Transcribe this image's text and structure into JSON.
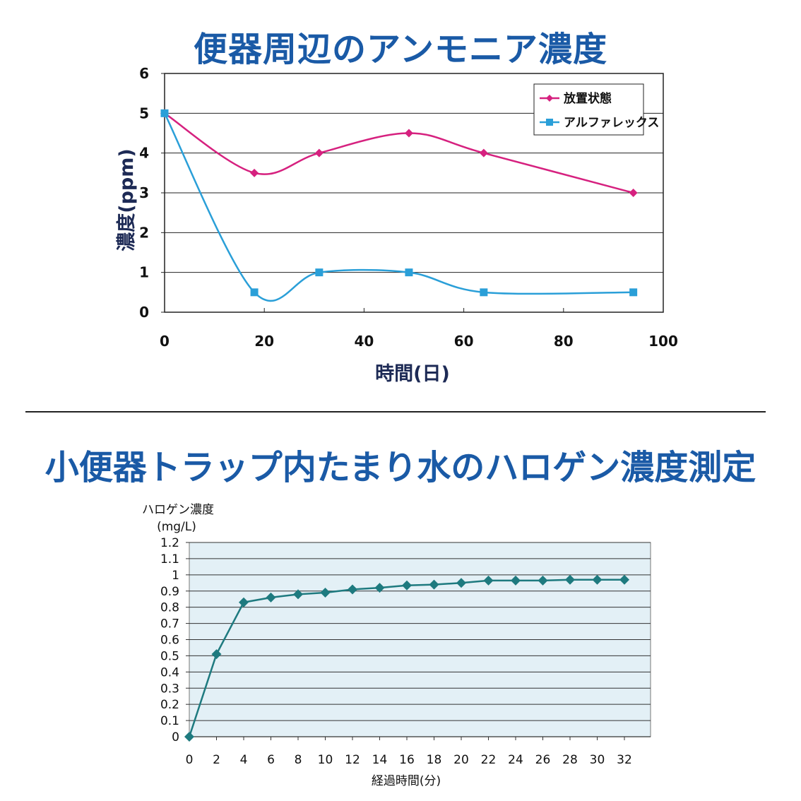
{
  "titles": {
    "top": "便器周辺のアンモニア濃度",
    "bottom": "小便器トラップ内たまり水のハロゲン濃度測定"
  },
  "chart_data": [
    {
      "type": "line",
      "title": "便器周辺のアンモニア濃度",
      "xlabel": "時間(日)",
      "ylabel": "濃度(ppm)",
      "xlim": [
        0,
        100
      ],
      "ylim": [
        0,
        6
      ],
      "xticks": [
        0,
        20,
        40,
        60,
        80,
        100
      ],
      "yticks": [
        0,
        1,
        2,
        3,
        4,
        5,
        6
      ],
      "grid": "horizontal",
      "legend": "top-right",
      "series": [
        {
          "name": "放置状態",
          "color": "#d6217f",
          "marker": "diamond",
          "x": [
            0,
            18,
            31,
            49,
            64,
            94
          ],
          "y": [
            5,
            3.5,
            4,
            4.5,
            4,
            3
          ]
        },
        {
          "name": "アルファレックス",
          "color": "#2a9fd8",
          "marker": "square",
          "x": [
            0,
            18,
            31,
            49,
            64,
            94
          ],
          "y": [
            5,
            0.5,
            1,
            1,
            0.5,
            0.5
          ]
        }
      ]
    },
    {
      "type": "line",
      "title": "小便器トラップ内たまり水のハロゲン濃度測定",
      "xlabel": "経過時間(分)",
      "ylabel_line1": "ハロゲン濃度",
      "ylabel_line2": "(mg/L)",
      "xlim": [
        0,
        32
      ],
      "ylim": [
        0,
        1.2
      ],
      "xticks": [
        "0",
        "2",
        "4",
        "6",
        "8",
        "10",
        "12",
        "14",
        "16",
        "18",
        "20",
        "22",
        "24",
        "26",
        "28",
        "30",
        "32"
      ],
      "yticks": [
        "0",
        "0.1",
        "0.2",
        "0.3",
        "0.4",
        "0.5",
        "0.6",
        "0.7",
        "0.8",
        "0.9",
        "1",
        "1.1",
        "1.2"
      ],
      "grid": "horizontal",
      "background": "#e3f0f6",
      "series": [
        {
          "color": "#1e7a7f",
          "marker": "diamond",
          "x": [
            0,
            2,
            4,
            6,
            8,
            10,
            12,
            14,
            16,
            18,
            20,
            22,
            24,
            26,
            28,
            30,
            32
          ],
          "y": [
            0,
            0.51,
            0.83,
            0.86,
            0.88,
            0.89,
            0.91,
            0.92,
            0.935,
            0.94,
            0.95,
            0.965,
            0.965,
            0.965,
            0.97,
            0.97,
            0.97
          ]
        }
      ]
    }
  ]
}
